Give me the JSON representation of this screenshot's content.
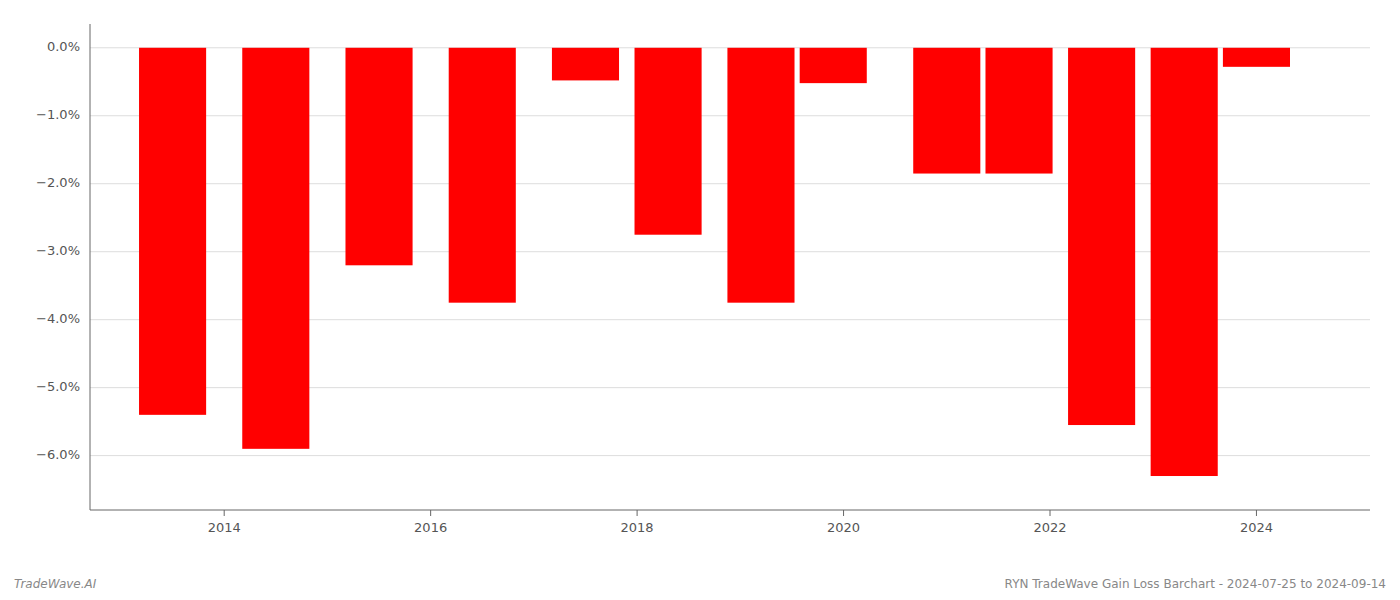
{
  "chart_data": {
    "type": "bar",
    "x": [
      2013.5,
      2014.5,
      2015.5,
      2016.5,
      2017.5,
      2018.3,
      2019.2,
      2019.9,
      2021.0,
      2021.7,
      2022.5,
      2023.3,
      2024.0
    ],
    "values": [
      -5.4,
      -5.9,
      -3.2,
      -3.75,
      -0.48,
      -2.75,
      -3.75,
      -0.52,
      -1.85,
      -1.85,
      -5.55,
      -6.3,
      -0.28
    ],
    "color": "#FF0000",
    "xlim": [
      2012.7,
      2025.1
    ],
    "xticks": [
      2014,
      2016,
      2018,
      2020,
      2022,
      2024
    ],
    "ylim": [
      -6.8,
      0.35
    ],
    "yticks": [
      {
        "value": 0.0,
        "label": "0.0%"
      },
      {
        "value": -1.0,
        "label": "−1.0%"
      },
      {
        "value": -2.0,
        "label": "−2.0%"
      },
      {
        "value": -3.0,
        "label": "−3.0%"
      },
      {
        "value": -4.0,
        "label": "−4.0%"
      },
      {
        "value": -5.0,
        "label": "−5.0%"
      },
      {
        "value": -6.0,
        "label": "−6.0%"
      }
    ],
    "grid": true,
    "annotations": [
      "TradeWave.AI",
      "RYN TradeWave Gain Loss Barchart - 2024-07-25 to 2024-09-14"
    ]
  }
}
